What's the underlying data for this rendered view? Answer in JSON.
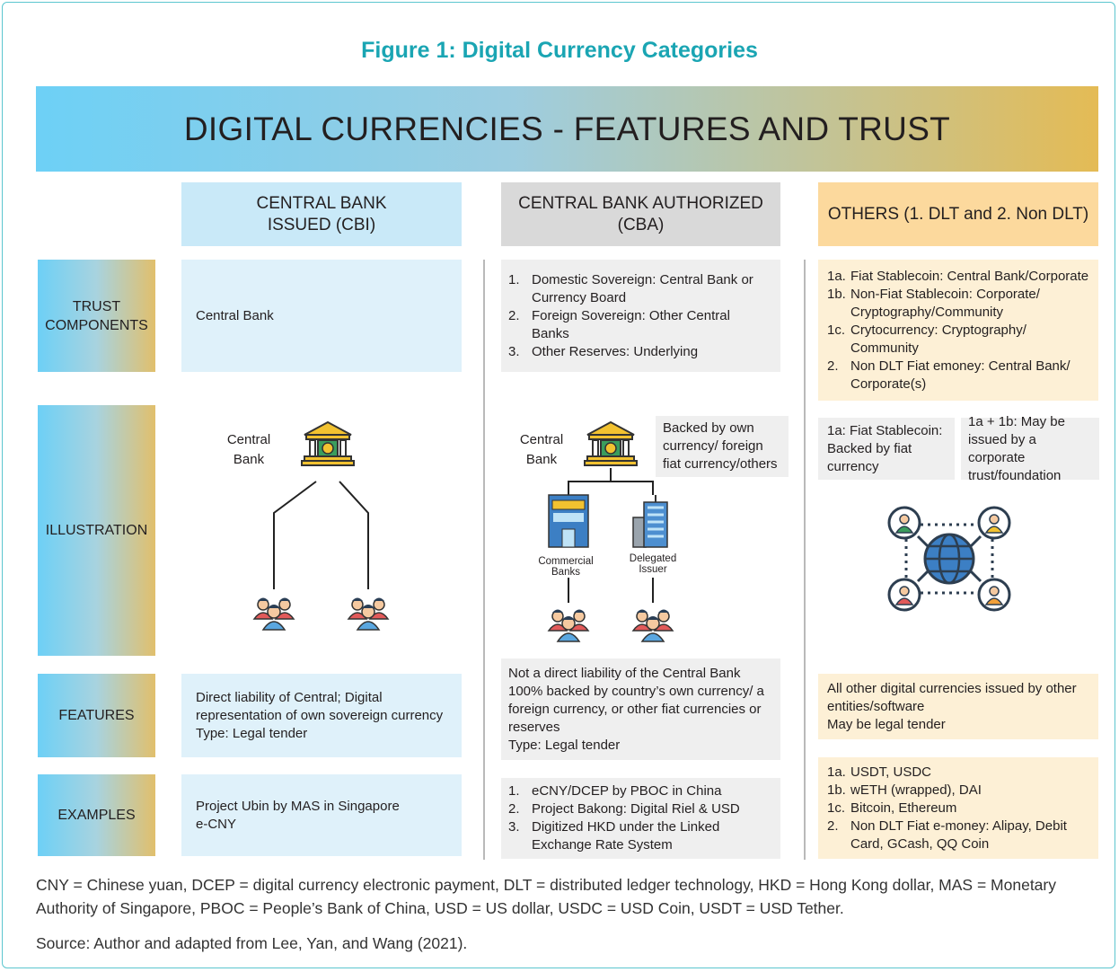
{
  "figure_title": "Figure 1: Digital Currency Categories",
  "banner": "DIGITAL CURRENCIES - FEATURES AND TRUST",
  "columns": [
    "CENTRAL BANK ISSUED (CBI)",
    "CENTRAL BANK AUTHORIZED (CBA)",
    "OTHERS (1. DLT and 2. Non DLT)"
  ],
  "rows": [
    "TRUST COMPONENTS",
    "ILLUSTRATION",
    "FEATURES",
    "EXAMPLES"
  ],
  "cbi": {
    "trust": "Central Bank",
    "illustration": {
      "central_bank": "Central Bank"
    },
    "features": [
      "Direct liability of Central; Digital representation of own sovereign currency",
      "Type: Legal tender"
    ],
    "examples": [
      "Project Ubin by MAS in Singapore",
      "e-CNY"
    ]
  },
  "cba": {
    "trust": [
      [
        "1.",
        "Domestic Sovereign: Central Bank or Currency Board"
      ],
      [
        "2.",
        "Foreign Sovereign: Other Central Banks"
      ],
      [
        "3.",
        "Other Reserves: Underlying"
      ]
    ],
    "illustration": {
      "central_bank": "Central Bank",
      "note": "Backed by own currency/ foreign fiat currency/others",
      "commercial_banks": "Commercial Banks",
      "delegated_issuer": "Delegated Issuer"
    },
    "features": [
      "Not a direct liability of the Central Bank",
      "100% backed by country’s own currency/ a foreign currency, or other fiat currencies or reserves",
      "Type: Legal tender"
    ],
    "examples": [
      [
        "1.",
        "eCNY/DCEP by PBOC in China"
      ],
      [
        "2.",
        "Project Bakong: Digital Riel & USD"
      ],
      [
        "3.",
        "Digitized HKD under the Linked Exchange Rate System"
      ]
    ]
  },
  "others": {
    "trust": [
      [
        "1a.",
        "Fiat Stablecoin: Central Bank/Corporate"
      ],
      [
        "1b.",
        "Non-Fiat Stablecoin: Corporate/ Cryptography/Community"
      ],
      [
        "1c.",
        "Crytocurrency: Cryptography/ Community"
      ],
      [
        "2.",
        "Non DLT Fiat emoney: Central Bank/ Corporate(s)"
      ]
    ],
    "illustration": {
      "notes": [
        "1a: Fiat Stablecoin: Backed by fiat currency",
        "1a + 1b: May be issued by a corporate trust/foundation"
      ]
    },
    "features": [
      "All other digital currencies issued by other entities/software",
      "May be legal tender"
    ],
    "examples": [
      [
        "1a.",
        "USDT, USDC"
      ],
      [
        "1b.",
        "wETH (wrapped), DAI"
      ],
      [
        "1c.",
        "Bitcoin, Ethereum"
      ],
      [
        "2.",
        "Non DLT Fiat e-money: Alipay, Debit Card, GCash, QQ Coin"
      ]
    ]
  },
  "footnote": "CNY = Chinese yuan, DCEP = digital currency electronic payment, DLT = distributed ledger technology, HKD = Hong Kong dollar, MAS = Monetary Authority of Singapore, PBOC = People’s Bank of China, USD = US dollar, USDC = USD Coin, USDT = USD Tether.",
  "source": "Source: Author and adapted from Lee, Yan, and Wang (2021)."
}
